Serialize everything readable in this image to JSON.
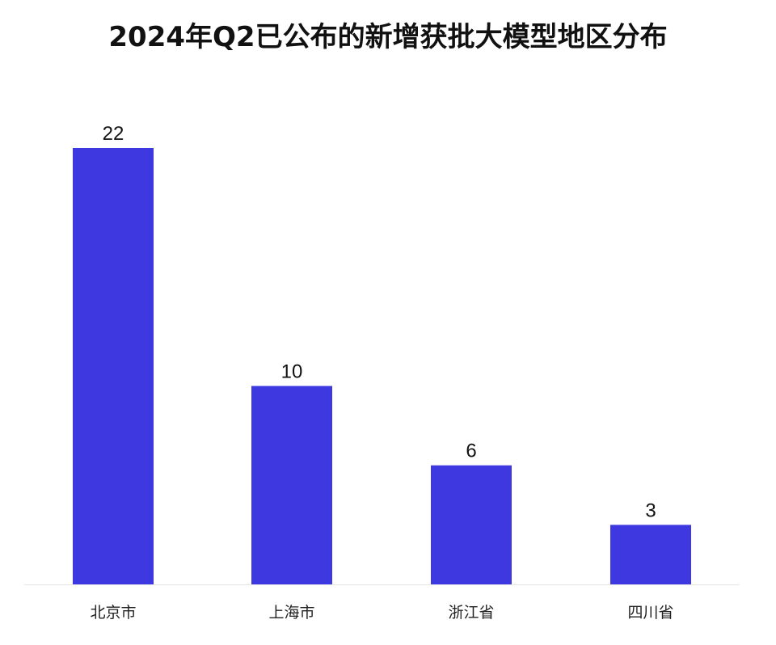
{
  "chart_data": {
    "type": "bar",
    "title": "2024年Q2已公布的新增获批大模型地区分布",
    "xlabel": "",
    "ylabel": "",
    "categories": [
      "北京市",
      "上海市",
      "浙江省",
      "四川省"
    ],
    "values": [
      22,
      10,
      6,
      3
    ],
    "ylim": [
      0,
      22
    ],
    "grid": false,
    "legend": "none",
    "colors": {
      "bar": "#3d38e0",
      "baseline": "#e6e6e6"
    }
  }
}
